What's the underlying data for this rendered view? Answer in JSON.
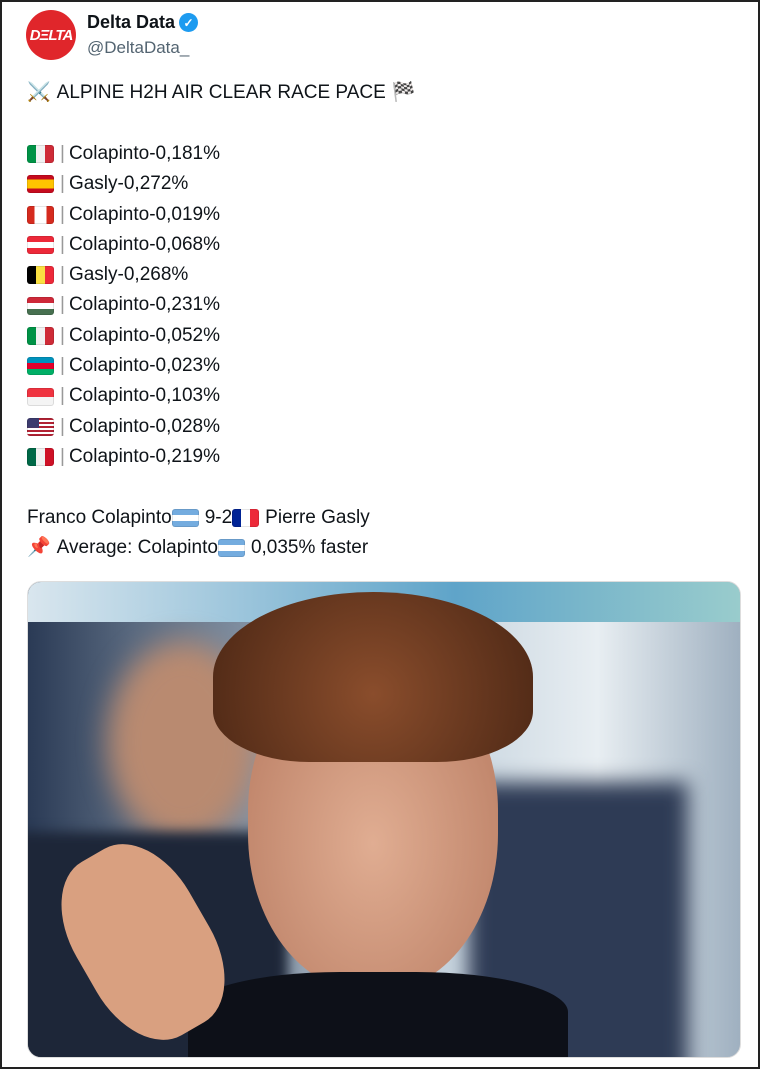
{
  "author": {
    "name": "Delta Data",
    "handle": "@DeltaData_",
    "avatar_text": "DΞLTA",
    "verified": true
  },
  "tweet": {
    "title": "ALPINE H2H AIR CLEAR RACE PACE",
    "title_icons": [
      "crossed-swords-icon",
      "chequered-flag-icon"
    ],
    "races": [
      {
        "flag": "IT",
        "driver": "Colapinto",
        "delta": "-0,181%"
      },
      {
        "flag": "ES",
        "driver": "Gasly",
        "delta": "-0,272%"
      },
      {
        "flag": "CA",
        "driver": "Colapinto",
        "delta": "-0,019%"
      },
      {
        "flag": "AT",
        "driver": "Colapinto",
        "delta": "-0,068%"
      },
      {
        "flag": "BE",
        "driver": "Gasly",
        "delta": "-0,268%"
      },
      {
        "flag": "HU",
        "driver": "Colapinto",
        "delta": "-0,231%"
      },
      {
        "flag": "IT",
        "driver": "Colapinto",
        "delta": "-0,052%"
      },
      {
        "flag": "AZ",
        "driver": "Colapinto",
        "delta": "-0,023%"
      },
      {
        "flag": "SG",
        "driver": "Colapinto",
        "delta": "-0,103%"
      },
      {
        "flag": "US",
        "driver": "Colapinto",
        "delta": "-0,028%"
      },
      {
        "flag": "MX",
        "driver": "Colapinto",
        "delta": "-0,219%"
      }
    ],
    "summary": {
      "driver1": "Franco Colapinto",
      "flag1": "AR",
      "score": "9-2",
      "flag2": "FR",
      "driver2": "Pierre Gasly"
    },
    "average": {
      "icon": "pushpin-icon",
      "label": "Average: Colapinto",
      "flag": "AR",
      "value": "0,035% faster"
    }
  },
  "colors": {
    "accent": "#1d9bf0",
    "avatar": "#e0262b"
  }
}
